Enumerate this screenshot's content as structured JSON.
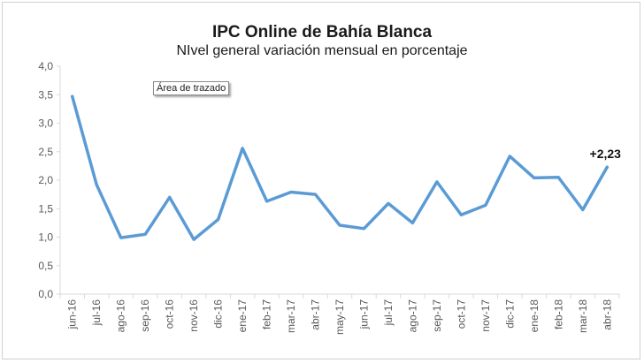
{
  "chart_data": {
    "type": "line",
    "title": "IPC Online de Bahía Blanca",
    "subtitle": "NIvel general variación mensual en porcentaje",
    "xlabel": "",
    "ylabel": "",
    "ylim": [
      0,
      4
    ],
    "yticks": [
      "0,0",
      "0,5",
      "1,0",
      "1,5",
      "2,0",
      "2,5",
      "3,0",
      "3,5",
      "4,0"
    ],
    "ytick_values": [
      0,
      0.5,
      1,
      1.5,
      2,
      2.5,
      3,
      3.5,
      4
    ],
    "grid": false,
    "categories": [
      "jun-16",
      "jul-16",
      "ago-16",
      "sep-16",
      "oct-16",
      "nov-16",
      "dic-16",
      "ene-17",
      "feb-17",
      "mar-17",
      "abr-17",
      "may-17",
      "jun-17",
      "jul-17",
      "ago-17",
      "sep-17",
      "oct-17",
      "nov-17",
      "dic-17",
      "ene-18",
      "feb-18",
      "mar-18",
      "abr-18"
    ],
    "series": [
      {
        "values": [
          3.47,
          1.92,
          0.99,
          1.05,
          1.7,
          0.96,
          1.31,
          2.56,
          1.63,
          1.79,
          1.75,
          1.21,
          1.15,
          1.59,
          1.25,
          1.97,
          1.39,
          1.56,
          2.42,
          2.04,
          2.05,
          1.48,
          2.23
        ],
        "color": "#5b9bd5"
      }
    ],
    "data_label": {
      "index": 22,
      "text": "+2,23"
    }
  },
  "tooltip": "Área de trazado"
}
